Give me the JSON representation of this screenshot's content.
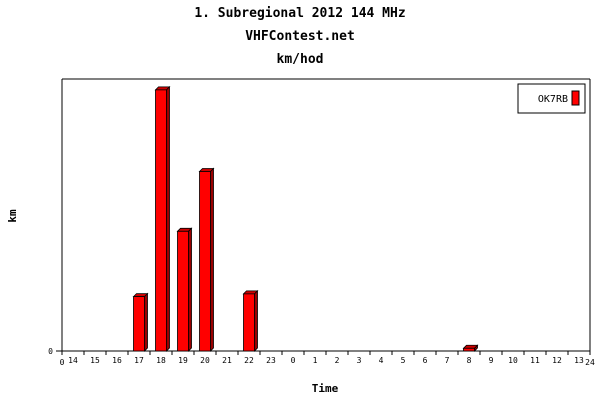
{
  "chart_data": {
    "type": "bar",
    "title": "1. Subregional 2012 144 MHz",
    "subtitle": "VHFContest.net",
    "subtitle2": "km/hod",
    "xlabel": "Time",
    "ylabel": "km",
    "categories": [
      "14",
      "15",
      "16",
      "17",
      "18",
      "19",
      "20",
      "21",
      "22",
      "23",
      "0",
      "1",
      "2",
      "3",
      "4",
      "5",
      "6",
      "7",
      "8",
      "9",
      "10",
      "11",
      "12",
      "13"
    ],
    "x_axis_start_label": "0",
    "x_axis_end_label": "24",
    "y_tick_labels": [
      "0"
    ],
    "ylim": [
      0,
      100
    ],
    "grid": false,
    "legend_position": "top-right",
    "series": [
      {
        "name": "OK7RB",
        "color": "#ff0000",
        "values": [
          0,
          0,
          0,
          20,
          96,
          44,
          66,
          0,
          21,
          0,
          0,
          0,
          0,
          0,
          0,
          0,
          0,
          0,
          1,
          0,
          0,
          0,
          0,
          0
        ]
      }
    ]
  }
}
